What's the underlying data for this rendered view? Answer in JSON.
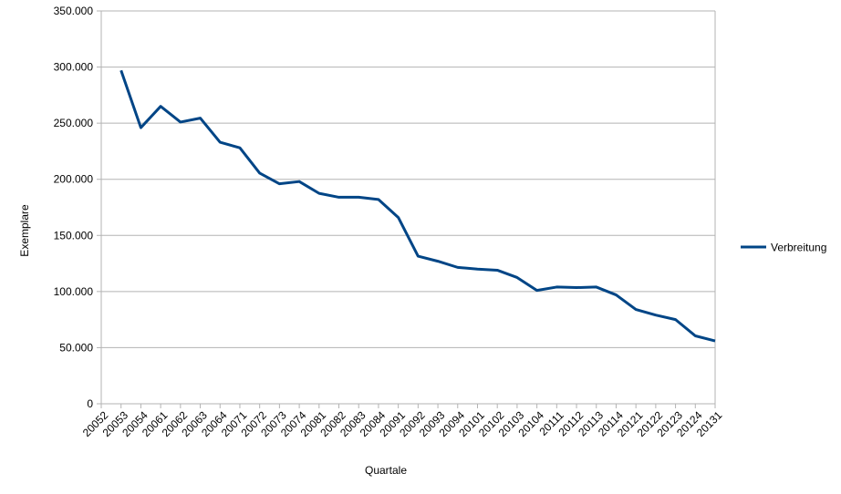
{
  "chart_data": {
    "type": "line",
    "x": [
      "20052",
      "20053",
      "20054",
      "20061",
      "20062",
      "20063",
      "20064",
      "20071",
      "20072",
      "20073",
      "20074",
      "20081",
      "20082",
      "20083",
      "20084",
      "20091",
      "20092",
      "20093",
      "20094",
      "20101",
      "20102",
      "20103",
      "20104",
      "20111",
      "20112",
      "20113",
      "20114",
      "20121",
      "20122",
      "20123",
      "20124",
      "20131"
    ],
    "series": [
      {
        "name": "Verbreitung",
        "values": [
          null,
          297000,
          246000,
          265000,
          251000,
          254500,
          233000,
          228000,
          205500,
          196000,
          198000,
          187500,
          184000,
          184000,
          182000,
          166000,
          131500,
          127000,
          121500,
          120000,
          119000,
          112500,
          101000,
          104000,
          103500,
          104000,
          97000,
          84000,
          79000,
          75000,
          60500,
          56000
        ]
      }
    ],
    "y_ticks": [
      "0",
      "50.000",
      "100.000",
      "150.000",
      "200.000",
      "250.000",
      "300.000",
      "350.000"
    ],
    "ylim": [
      0,
      350000
    ],
    "xlabel": "Quartale",
    "ylabel": "Exemplare",
    "legend_position": "right",
    "grid": "horizontal",
    "line_color": "#004586"
  }
}
